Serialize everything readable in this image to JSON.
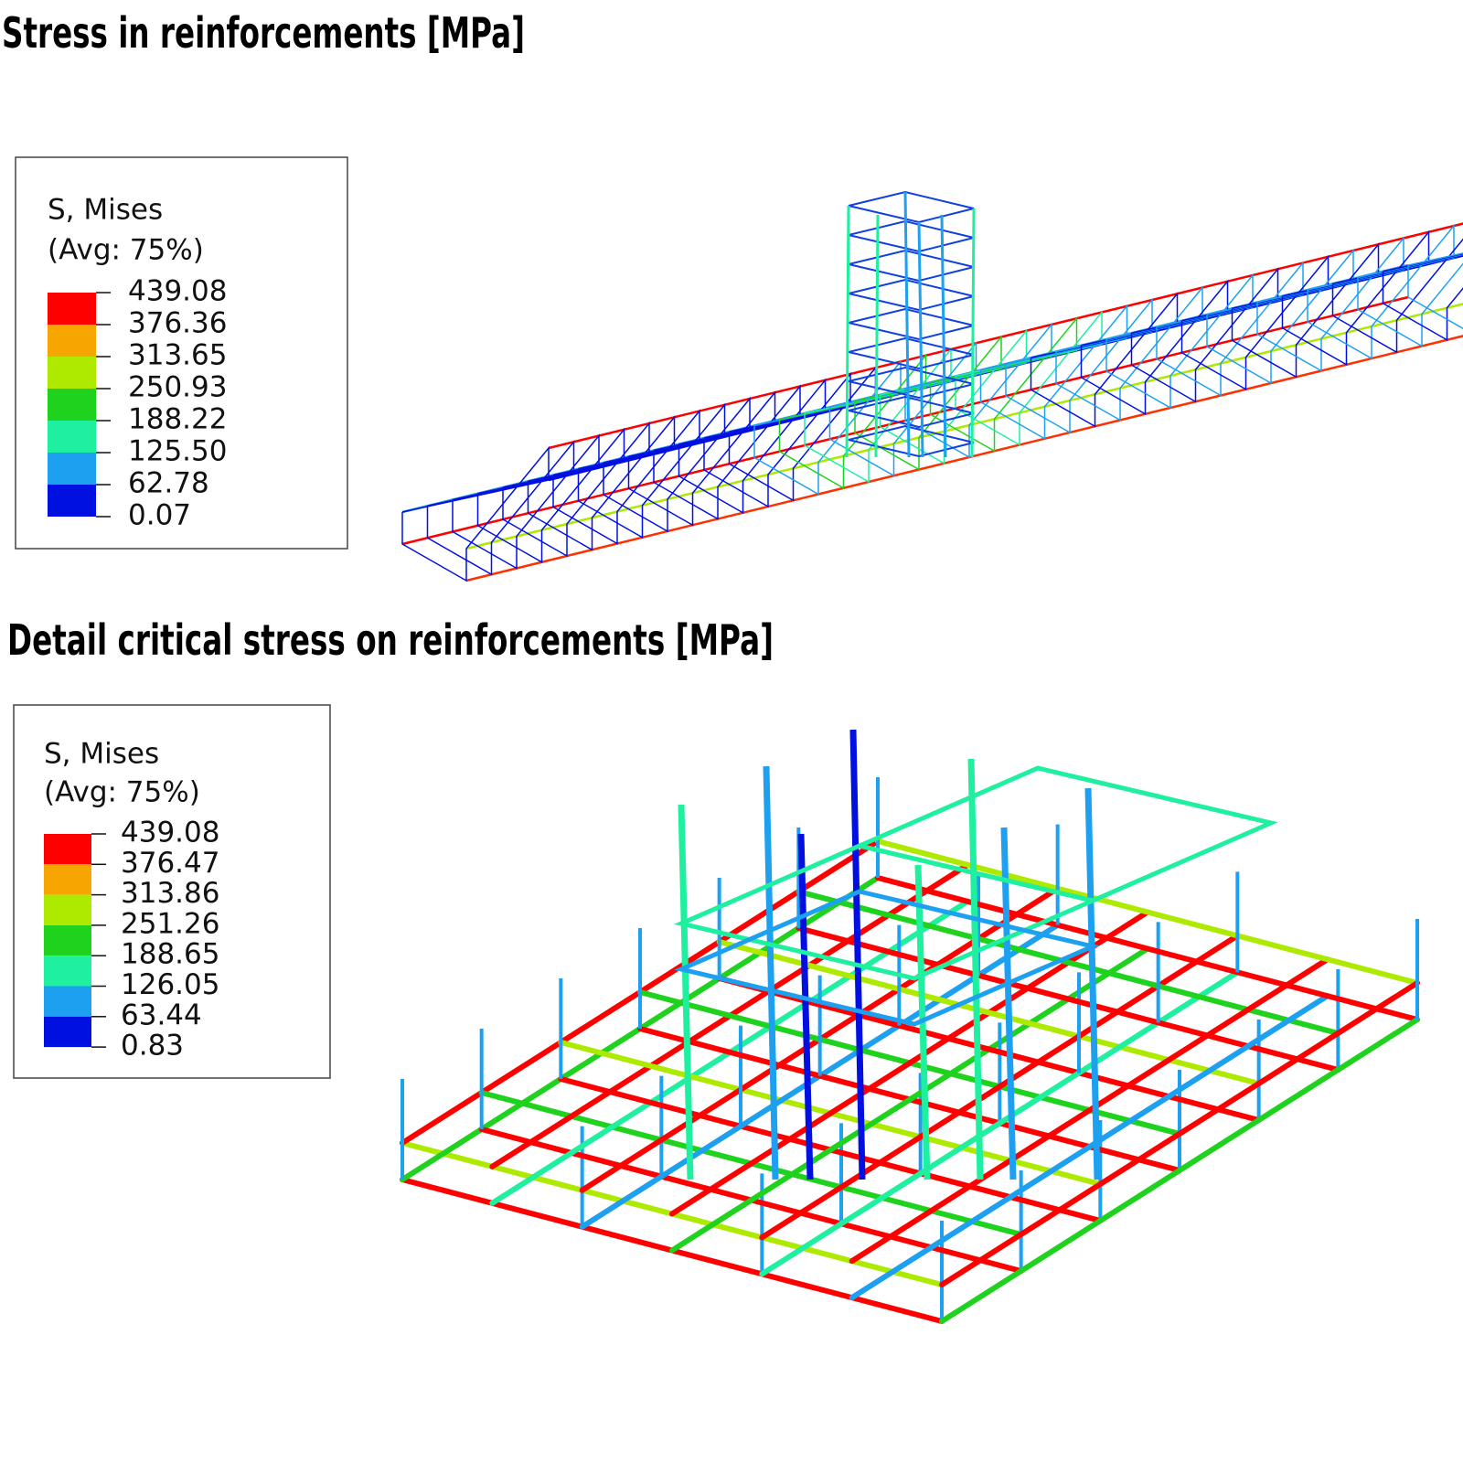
{
  "panels": [
    {
      "title": "Stress in reinforcements [MPa]",
      "legend": {
        "title": "S, Mises",
        "subtitle": "(Avg: 75%)",
        "labels": [
          "439.08",
          "376.36",
          "313.65",
          "250.93",
          "188.22",
          "125.50",
          "62.78",
          "0.07"
        ],
        "colors": [
          "#ff0000",
          "#f7a500",
          "#aeea00",
          "#1ed21e",
          "#1ef0a0",
          "#1ea0f0",
          "#0010e0"
        ]
      }
    },
    {
      "title": "Detail critical stress on reinforcements [MPa]",
      "legend": {
        "title": "S, Mises",
        "subtitle": "(Avg: 75%)",
        "labels": [
          "439.08",
          "376.47",
          "313.86",
          "251.26",
          "188.65",
          "126.05",
          "63.44",
          "0.83"
        ],
        "colors": [
          "#ff0000",
          "#f7a500",
          "#aeea00",
          "#1ed21e",
          "#1ef0a0",
          "#1ea0f0",
          "#0010e0"
        ]
      }
    }
  ]
}
